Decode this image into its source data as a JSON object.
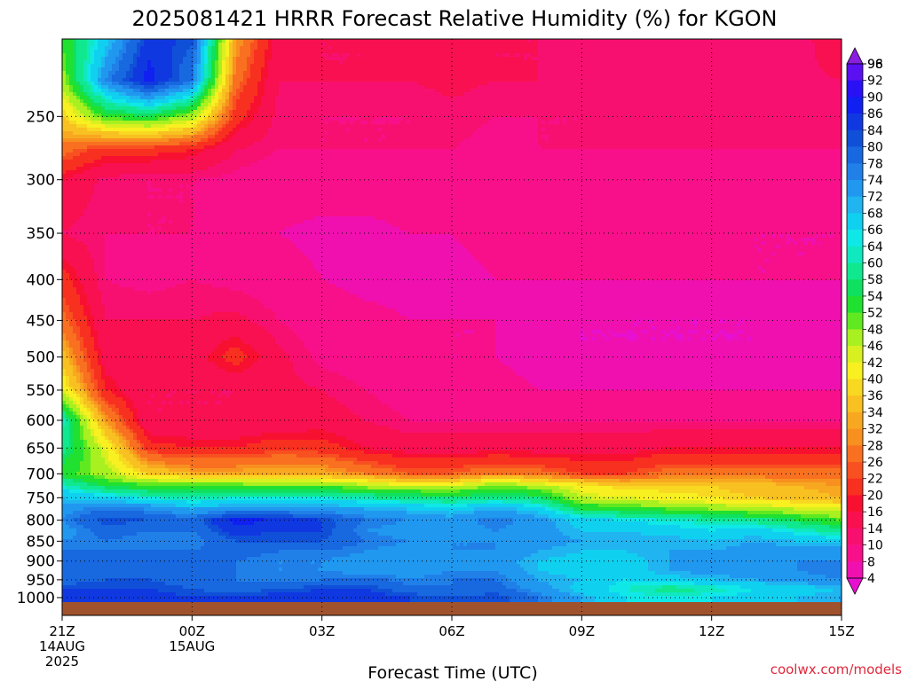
{
  "chart_data": {
    "type": "heatmap",
    "title": "2025081421 HRRR Forecast Relative Humidity (%) for KGON",
    "xlabel": "Forecast Time (UTC)",
    "ylabel": "",
    "watermark": "coolwx.com/models",
    "x_ticks": [
      {
        "hour": 0,
        "lines": [
          "21Z",
          "14AUG",
          "2025"
        ]
      },
      {
        "hour": 3,
        "lines": [
          "00Z",
          "15AUG"
        ]
      },
      {
        "hour": 6,
        "lines": [
          "03Z"
        ]
      },
      {
        "hour": 9,
        "lines": [
          "06Z"
        ]
      },
      {
        "hour": 12,
        "lines": [
          "09Z"
        ]
      },
      {
        "hour": 15,
        "lines": [
          "12Z"
        ]
      },
      {
        "hour": 18,
        "lines": [
          "15Z"
        ]
      }
    ],
    "xlim": [
      0,
      18
    ],
    "y_ticks": [
      250,
      300,
      350,
      400,
      450,
      500,
      550,
      600,
      650,
      700,
      750,
      800,
      850,
      900,
      950,
      1000
    ],
    "ylim": [
      200,
      1013
    ],
    "y_scale": "log-pressure (inverted)",
    "grid": true,
    "colorbar": {
      "labels": [
        98,
        96,
        92,
        90,
        86,
        84,
        80,
        78,
        74,
        72,
        68,
        66,
        64,
        60,
        58,
        54,
        52,
        48,
        46,
        42,
        40,
        36,
        34,
        32,
        28,
        26,
        22,
        20,
        16,
        14,
        10,
        8,
        4
      ],
      "colors": [
        "#8a1fe0",
        "#5a10f0",
        "#2a10f5",
        "#1020f0",
        "#1038e0",
        "#1050d8",
        "#1868e0",
        "#2080e8",
        "#2098f0",
        "#20b4f0",
        "#10d0f0",
        "#10e8e8",
        "#10e8c0",
        "#10e890",
        "#10e060",
        "#20e030",
        "#60e820",
        "#a8f020",
        "#d8f020",
        "#f8f020",
        "#f8d820",
        "#f8c020",
        "#f8a820",
        "#f89020",
        "#f87020",
        "#f85020",
        "#f83020",
        "#f81030",
        "#f81050",
        "#f81070",
        "#f8108a",
        "#f010b0",
        "#e810d0"
      ]
    },
    "ground_color": "#a0522d",
    "hours": [
      0,
      1,
      2,
      3,
      4,
      5,
      6,
      7,
      8,
      9,
      10,
      11,
      12,
      13,
      14,
      15,
      16,
      17,
      18
    ],
    "levels": [
      200,
      225,
      250,
      275,
      300,
      350,
      400,
      450,
      500,
      550,
      600,
      650,
      700,
      725,
      750,
      775,
      800,
      825,
      850,
      875,
      900,
      925,
      950,
      975,
      1000
    ],
    "rh": [
      [
        55,
        70,
        88,
        85,
        35,
        18,
        16,
        16,
        17,
        17,
        16,
        16,
        15,
        15,
        15,
        14,
        14,
        14,
        20
      ],
      [
        50,
        78,
        92,
        80,
        30,
        16,
        16,
        16,
        16,
        17,
        16,
        16,
        15,
        15,
        14,
        14,
        15,
        15,
        16
      ],
      [
        40,
        55,
        58,
        50,
        24,
        15,
        14,
        14,
        14,
        15,
        14,
        14,
        14,
        15,
        15,
        15,
        15,
        15,
        15
      ],
      [
        30,
        24,
        24,
        22,
        16,
        14,
        14,
        14,
        14,
        14,
        13,
        14,
        14,
        14,
        14,
        14,
        14,
        14,
        14
      ],
      [
        20,
        15,
        14,
        14,
        13,
        12,
        12,
        12,
        12,
        12,
        12,
        12,
        12,
        12,
        12,
        12,
        12,
        12,
        12
      ],
      [
        16,
        14,
        14,
        14,
        12,
        10,
        9,
        9,
        10,
        10,
        11,
        11,
        11,
        11,
        11,
        11,
        10,
        10,
        10
      ],
      [
        24,
        14,
        13,
        14,
        13,
        12,
        10,
        9,
        9,
        9,
        10,
        10,
        10,
        10,
        10,
        10,
        10,
        10,
        10
      ],
      [
        30,
        16,
        16,
        16,
        17,
        14,
        12,
        11,
        10,
        10,
        10,
        9,
        8,
        8,
        8,
        8,
        8,
        9,
        9
      ],
      [
        38,
        18,
        16,
        18,
        24,
        17,
        13,
        12,
        11,
        10,
        10,
        9,
        8,
        8,
        8,
        8,
        8,
        8,
        8
      ],
      [
        46,
        22,
        16,
        16,
        16,
        17,
        16,
        14,
        12,
        12,
        11,
        10,
        10,
        10,
        10,
        10,
        10,
        10,
        10
      ],
      [
        66,
        34,
        16,
        16,
        16,
        16,
        18,
        16,
        14,
        14,
        14,
        14,
        14,
        14,
        14,
        14,
        14,
        14,
        14
      ],
      [
        62,
        46,
        24,
        22,
        22,
        25,
        24,
        20,
        18,
        18,
        18,
        18,
        18,
        18,
        20,
        20,
        20,
        20,
        20
      ],
      [
        56,
        50,
        40,
        36,
        36,
        36,
        36,
        32,
        28,
        28,
        32,
        30,
        26,
        26,
        30,
        30,
        30,
        30,
        30
      ],
      [
        66,
        58,
        55,
        55,
        55,
        54,
        54,
        50,
        48,
        48,
        52,
        50,
        44,
        40,
        40,
        40,
        38,
        36,
        34
      ],
      [
        72,
        70,
        66,
        64,
        66,
        66,
        66,
        64,
        62,
        60,
        62,
        60,
        48,
        46,
        44,
        42,
        40,
        38,
        36
      ],
      [
        76,
        80,
        78,
        74,
        76,
        76,
        76,
        74,
        72,
        70,
        74,
        70,
        58,
        56,
        54,
        52,
        50,
        48,
        46
      ],
      [
        78,
        86,
        84,
        82,
        92,
        90,
        86,
        80,
        78,
        76,
        80,
        76,
        70,
        68,
        66,
        64,
        62,
        58,
        54
      ],
      [
        76,
        82,
        80,
        80,
        88,
        86,
        86,
        78,
        76,
        76,
        78,
        76,
        72,
        72,
        70,
        68,
        70,
        66,
        62
      ],
      [
        78,
        80,
        78,
        78,
        84,
        84,
        84,
        80,
        78,
        78,
        78,
        76,
        74,
        74,
        74,
        72,
        74,
        72,
        70
      ],
      [
        80,
        80,
        80,
        80,
        82,
        80,
        80,
        78,
        76,
        78,
        78,
        74,
        72,
        72,
        74,
        74,
        76,
        76,
        76
      ],
      [
        80,
        82,
        82,
        80,
        80,
        78,
        78,
        76,
        74,
        76,
        76,
        72,
        70,
        70,
        74,
        76,
        78,
        78,
        78
      ],
      [
        80,
        82,
        82,
        82,
        80,
        78,
        78,
        76,
        76,
        78,
        78,
        72,
        70,
        70,
        74,
        76,
        76,
        78,
        80
      ],
      [
        82,
        84,
        84,
        82,
        80,
        78,
        80,
        82,
        78,
        80,
        80,
        74,
        72,
        68,
        70,
        72,
        74,
        76,
        78
      ],
      [
        86,
        86,
        86,
        84,
        82,
        84,
        86,
        86,
        82,
        80,
        82,
        76,
        70,
        66,
        62,
        64,
        68,
        70,
        72
      ],
      [
        88,
        90,
        88,
        86,
        86,
        88,
        88,
        88,
        86,
        84,
        86,
        80,
        74,
        68,
        66,
        68,
        70,
        72,
        74
      ]
    ]
  }
}
